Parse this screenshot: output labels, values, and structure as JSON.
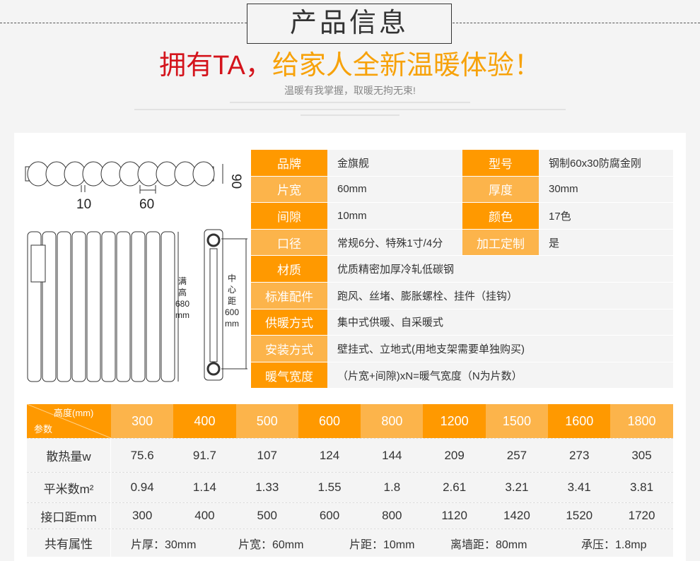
{
  "header": {
    "title": "产品信息",
    "slogan_red": "拥有TA，",
    "slogan_orange": "给家人全新温暖体验！",
    "subtitle": "温暖有我掌握，取暖无拘无束!"
  },
  "diagram": {
    "gap": "10",
    "width": "60",
    "depth": "90",
    "full_height": [
      "满",
      "高",
      "680",
      "mm"
    ],
    "center_distance": [
      "中",
      "心",
      "距",
      "600",
      "mm"
    ]
  },
  "specs": {
    "rows": [
      {
        "label": "品牌",
        "value": "金旗舰",
        "label2": "型号",
        "value2": "钢制60x30防腐金刚"
      },
      {
        "label": "片宽",
        "value": "60mm",
        "label2": "厚度",
        "value2": "30mm"
      },
      {
        "label": "间隙",
        "value": "10mm",
        "label2": "颜色",
        "value2": "17色"
      },
      {
        "label": "口径",
        "value": "常规6分、特殊1寸/4分",
        "label2": "加工定制",
        "value2": "是"
      },
      {
        "label": "材质",
        "value": "优质精密加厚冷轧低碳钢"
      },
      {
        "label": "标准配件",
        "value": "跑风、丝堵、膨胀螺栓、挂件（挂钩）"
      },
      {
        "label": "供暖方式",
        "value": "集中式供暖、自采暖式"
      },
      {
        "label": "安装方式",
        "value": "壁挂式、立地式(用地支架需要单独购买)"
      },
      {
        "label": "暖气宽度",
        "value": "（片宽+间隙)xN=暖气宽度（N为片数）"
      }
    ]
  },
  "params": {
    "corner_top": "高度(mm)",
    "corner_bottom": "参数",
    "heights": [
      "300",
      "400",
      "500",
      "600",
      "800",
      "1200",
      "1500",
      "1600",
      "1800"
    ],
    "rows": [
      {
        "label": "散热量w",
        "values": [
          "75.6",
          "91.7",
          "107",
          "124",
          "144",
          "209",
          "257",
          "273",
          "305"
        ]
      },
      {
        "label": "平米数m²",
        "values": [
          "0.94",
          "1.14",
          "1.33",
          "1.55",
          "1.8",
          "2.61",
          "3.21",
          "3.41",
          "3.81"
        ]
      },
      {
        "label": "接口距mm",
        "values": [
          "300",
          "400",
          "500",
          "600",
          "800",
          "1120",
          "1420",
          "1520",
          "1720"
        ]
      }
    ],
    "common_label": "共有属性",
    "common": [
      "片厚：30mm",
      "片宽：60mm",
      "片距：10mm",
      "离墙距：80mm",
      "承压：1.8mp"
    ]
  },
  "colors": {
    "orange_dark": "#ff9900",
    "orange_light": "#fcb44b",
    "red": "#d4141c"
  }
}
